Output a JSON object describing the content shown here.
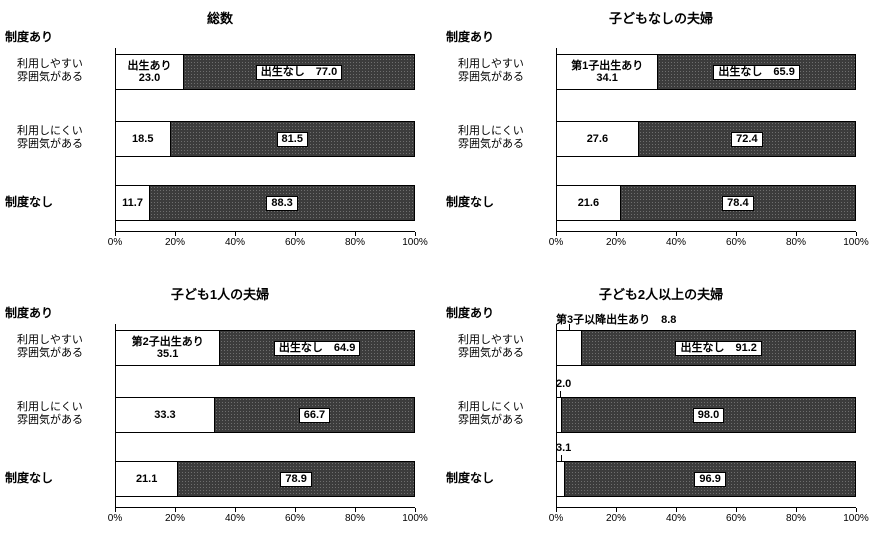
{
  "axis": {
    "min": 0,
    "max": 100,
    "ticks": [
      "0%",
      "20%",
      "40%",
      "60%",
      "80%",
      "100%"
    ]
  },
  "colors": {
    "birth_segment": "#ffffff",
    "no_birth_segment": "#3c3c3c",
    "border": "#000000"
  },
  "chart_data": [
    {
      "type": "bar",
      "orientation": "horizontal-stacked",
      "title": "総数",
      "group_label": "制度あり",
      "xlim": [
        0,
        100
      ],
      "categories": [
        "利用しやすい雰囲気がある",
        "利用しにくい雰囲気がある",
        "制度なし"
      ],
      "series": [
        {
          "name": "出生あり",
          "values": [
            23.0,
            18.5,
            11.7
          ]
        },
        {
          "name": "出生なし",
          "values": [
            77.0,
            81.5,
            88.3
          ]
        }
      ],
      "rows": [
        {
          "label_lines": [
            "利用しやすい",
            "雰囲気がある"
          ],
          "label_bold": false,
          "birth_value": 23.0,
          "no_birth_value": 77.0,
          "birth_label_position": "inside",
          "birth_label_lines": [
            "出生あり",
            "23.0"
          ],
          "birth_label_above": "",
          "no_birth_label": "出生なし　77.0"
        },
        {
          "label_lines": [
            "利用しにくい",
            "雰囲気がある"
          ],
          "label_bold": false,
          "birth_value": 18.5,
          "no_birth_value": 81.5,
          "birth_label_position": "inside",
          "birth_label_lines": [
            "18.5"
          ],
          "birth_label_above": "",
          "no_birth_label": "81.5"
        },
        {
          "label_lines": [
            "制度なし"
          ],
          "label_bold": true,
          "birth_value": 11.7,
          "no_birth_value": 88.3,
          "birth_label_position": "inside",
          "birth_label_lines": [
            "11.7"
          ],
          "birth_label_above": "",
          "no_birth_label": "88.3"
        }
      ]
    },
    {
      "type": "bar",
      "orientation": "horizontal-stacked",
      "title": "子どもなしの夫婦",
      "group_label": "制度あり",
      "xlim": [
        0,
        100
      ],
      "categories": [
        "利用しやすい雰囲気がある",
        "利用しにくい雰囲気がある",
        "制度なし"
      ],
      "series": [
        {
          "name": "第1子出生あり",
          "values": [
            34.1,
            27.6,
            21.6
          ]
        },
        {
          "name": "出生なし",
          "values": [
            65.9,
            72.4,
            78.4
          ]
        }
      ],
      "rows": [
        {
          "label_lines": [
            "利用しやすい",
            "雰囲気がある"
          ],
          "label_bold": false,
          "birth_value": 34.1,
          "no_birth_value": 65.9,
          "birth_label_position": "inside",
          "birth_label_lines": [
            "第1子出生あり",
            "34.1"
          ],
          "birth_label_above": "",
          "no_birth_label": "出生なし　65.9"
        },
        {
          "label_lines": [
            "利用しにくい",
            "雰囲気がある"
          ],
          "label_bold": false,
          "birth_value": 27.6,
          "no_birth_value": 72.4,
          "birth_label_position": "inside",
          "birth_label_lines": [
            "27.6"
          ],
          "birth_label_above": "",
          "no_birth_label": "72.4"
        },
        {
          "label_lines": [
            "制度なし"
          ],
          "label_bold": true,
          "birth_value": 21.6,
          "no_birth_value": 78.4,
          "birth_label_position": "inside",
          "birth_label_lines": [
            "21.6"
          ],
          "birth_label_above": "",
          "no_birth_label": "78.4"
        }
      ]
    },
    {
      "type": "bar",
      "orientation": "horizontal-stacked",
      "title": "子ども1人の夫婦",
      "group_label": "制度あり",
      "xlim": [
        0,
        100
      ],
      "categories": [
        "利用しやすい雰囲気がある",
        "利用しにくい雰囲気がある",
        "制度なし"
      ],
      "series": [
        {
          "name": "第2子出生あり",
          "values": [
            35.1,
            33.3,
            21.1
          ]
        },
        {
          "name": "出生なし",
          "values": [
            64.9,
            66.7,
            78.9
          ]
        }
      ],
      "rows": [
        {
          "label_lines": [
            "利用しやすい",
            "雰囲気がある"
          ],
          "label_bold": false,
          "birth_value": 35.1,
          "no_birth_value": 64.9,
          "birth_label_position": "inside",
          "birth_label_lines": [
            "第2子出生あり",
            "35.1"
          ],
          "birth_label_above": "",
          "no_birth_label": "出生なし　64.9"
        },
        {
          "label_lines": [
            "利用しにくい",
            "雰囲気がある"
          ],
          "label_bold": false,
          "birth_value": 33.3,
          "no_birth_value": 66.7,
          "birth_label_position": "inside",
          "birth_label_lines": [
            "33.3"
          ],
          "birth_label_above": "",
          "no_birth_label": "66.7"
        },
        {
          "label_lines": [
            "制度なし"
          ],
          "label_bold": true,
          "birth_value": 21.1,
          "no_birth_value": 78.9,
          "birth_label_position": "inside",
          "birth_label_lines": [
            "21.1"
          ],
          "birth_label_above": "",
          "no_birth_label": "78.9"
        }
      ]
    },
    {
      "type": "bar",
      "orientation": "horizontal-stacked",
      "title": "子ども2人以上の夫婦",
      "group_label": "制度あり",
      "xlim": [
        0,
        100
      ],
      "categories": [
        "利用しやすい雰囲気がある",
        "利用しにくい雰囲気がある",
        "制度なし"
      ],
      "series": [
        {
          "name": "第3子以降出生あり",
          "values": [
            8.8,
            2.0,
            3.1
          ]
        },
        {
          "name": "出生なし",
          "values": [
            91.2,
            98.0,
            96.9
          ]
        }
      ],
      "rows": [
        {
          "label_lines": [
            "利用しやすい",
            "雰囲気がある"
          ],
          "label_bold": false,
          "birth_value": 8.8,
          "no_birth_value": 91.2,
          "birth_label_position": "above",
          "birth_label_lines": [],
          "birth_label_above": "第3子以降出生あり　8.8",
          "no_birth_label": "出生なし　91.2"
        },
        {
          "label_lines": [
            "利用しにくい",
            "雰囲気がある"
          ],
          "label_bold": false,
          "birth_value": 2.0,
          "no_birth_value": 98.0,
          "birth_label_position": "above",
          "birth_label_lines": [],
          "birth_label_above": "2.0",
          "no_birth_label": "98.0"
        },
        {
          "label_lines": [
            "制度なし"
          ],
          "label_bold": true,
          "birth_value": 3.1,
          "no_birth_value": 96.9,
          "birth_label_position": "above",
          "birth_label_lines": [],
          "birth_label_above": "3.1",
          "no_birth_label": "96.9"
        }
      ]
    }
  ]
}
